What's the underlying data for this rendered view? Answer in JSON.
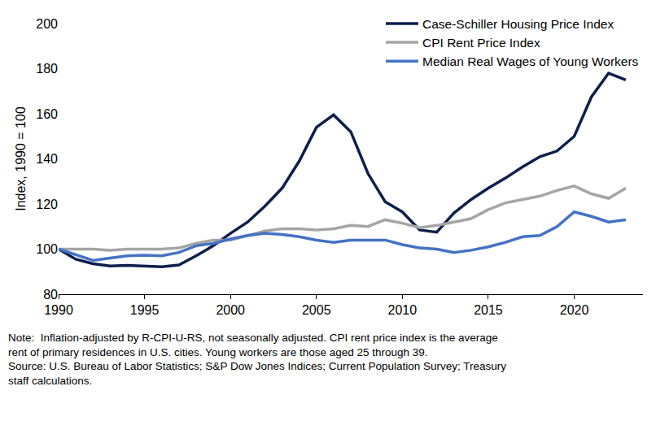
{
  "chart_data": {
    "type": "line",
    "y_label": "Index, 1990 = 100",
    "annotations": [
      "Note:  Inflation-adjusted by R-CPI-U-RS, not seasonally adjusted. CPI rent price index is the average",
      "rent of primary residences in U.S. cities. Young workers are those aged 25 through 39.",
      "Source: U.S. Bureau of Labor Statistics; S&P Dow Jones Indices; Current Population Survey; Treasury",
      "staff calculations."
    ],
    "x": [
      1990,
      1991,
      1992,
      1993,
      1994,
      1995,
      1996,
      1997,
      1998,
      1999,
      2000,
      2001,
      2002,
      2003,
      2004,
      2005,
      2006,
      2007,
      2008,
      2009,
      2010,
      2011,
      2012,
      2013,
      2014,
      2015,
      2016,
      2017,
      2018,
      2019,
      2020,
      2021,
      2022,
      2023
    ],
    "series": [
      {
        "name": "Case-Schiller Housing Price Index",
        "color": "#0f1f4b",
        "values": [
          100,
          95.5,
          93.5,
          92.5,
          92.8,
          92.5,
          92.2,
          93,
          97,
          101.5,
          107,
          112,
          119,
          127,
          139,
          154,
          159.5,
          152,
          133.5,
          121,
          116.5,
          108.5,
          107.5,
          116,
          122,
          127,
          131.5,
          136.5,
          141,
          143.5,
          150,
          167.5,
          178,
          175
        ]
      },
      {
        "name": "CPI Rent Price Index",
        "color": "#a5a5a5",
        "values": [
          100,
          100,
          100,
          99.5,
          100,
          100,
          100,
          100.5,
          102.5,
          104,
          104,
          106,
          108,
          109,
          109,
          108.5,
          109,
          110.5,
          110,
          113,
          111.5,
          109.5,
          110.5,
          112,
          113.5,
          117.5,
          120.5,
          122,
          123.5,
          126,
          128,
          124.5,
          122.5,
          127
        ]
      },
      {
        "name": "Median Real Wages of Young Workers",
        "color": "#4472c4",
        "values": [
          100,
          97.5,
          95,
          96,
          97,
          97.3,
          97,
          98.5,
          101.5,
          102.5,
          104.5,
          106,
          107,
          106.5,
          105.5,
          104,
          103,
          104,
          104,
          104,
          102,
          100.5,
          100,
          98.5,
          99.5,
          101,
          103,
          105.5,
          106,
          110,
          116.5,
          114.5,
          112,
          113
        ]
      }
    ],
    "xlim": [
      1990,
      2024
    ],
    "xticks": [
      1990,
      1995,
      2000,
      2005,
      2010,
      2015,
      2020
    ],
    "ylim": [
      80,
      200
    ],
    "yticks": [
      80,
      100,
      120,
      140,
      160,
      180,
      200
    ],
    "grid": false,
    "legend": "upper right"
  }
}
